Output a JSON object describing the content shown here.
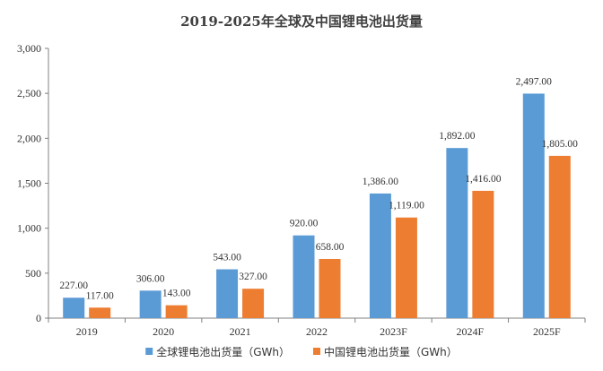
{
  "chart_data": {
    "type": "bar",
    "title": "2019-2025年全球及中国锂电池出货量",
    "categories": [
      "2019",
      "2020",
      "2021",
      "2022",
      "2023F",
      "2024F",
      "2025F"
    ],
    "series": [
      {
        "name": "全球锂电池出货量（GWh）",
        "color": "#5B9BD5",
        "values": [
          227.0,
          306.0,
          543.0,
          920.0,
          1386.0,
          1892.0,
          2497.0
        ],
        "labels": [
          "227.00",
          "306.00",
          "543.00",
          "920.00",
          "1,386.00",
          "1,892.00",
          "2,497.00"
        ]
      },
      {
        "name": "中国锂电池出货量（GWh）",
        "color": "#ED7D31",
        "values": [
          117.0,
          143.0,
          327.0,
          658.0,
          1119.0,
          1416.0,
          1805.0
        ],
        "labels": [
          "117.00",
          "143.00",
          "327.00",
          "658.00",
          "1,119.00",
          "1,416.00",
          "1,805.00"
        ]
      }
    ],
    "ylim": [
      0,
      3000
    ],
    "yticks": [
      "0",
      "500",
      "1,000",
      "1,500",
      "2,000",
      "2,500",
      "3,000"
    ],
    "xlabel": "",
    "ylabel": "",
    "legend": "bottom",
    "grid": false
  }
}
